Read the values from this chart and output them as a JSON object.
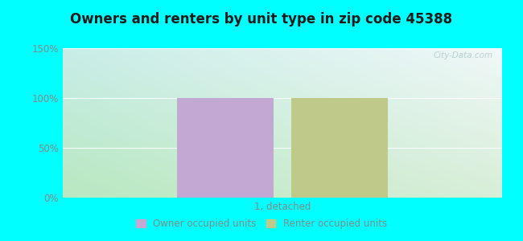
{
  "title": "Owners and renters by unit type in zip code 45388",
  "categories": [
    "1, detached"
  ],
  "owner_values": [
    100
  ],
  "renter_values": [
    100
  ],
  "owner_color": "#c4a8d4",
  "renter_color": "#bec98a",
  "ylim": [
    0,
    150
  ],
  "yticks": [
    0,
    50,
    100,
    150
  ],
  "ytick_labels": [
    "0%",
    "50%",
    "100%",
    "150%"
  ],
  "bg_topleft": "#c8ede8",
  "bg_topright": "#eaf5f5",
  "bg_bottomleft": "#c8edcc",
  "bg_bottomright": "#e0f0e0",
  "outer_bg": "#00ffff",
  "watermark": "City-Data.com",
  "legend_owner": "Owner occupied units",
  "legend_renter": "Renter occupied units",
  "bar_width": 0.22,
  "title_fontsize": 12,
  "tick_fontsize": 8.5,
  "xlabel_fontsize": 8.5,
  "grid_color": "#ddeeee",
  "tick_color": "#888888"
}
